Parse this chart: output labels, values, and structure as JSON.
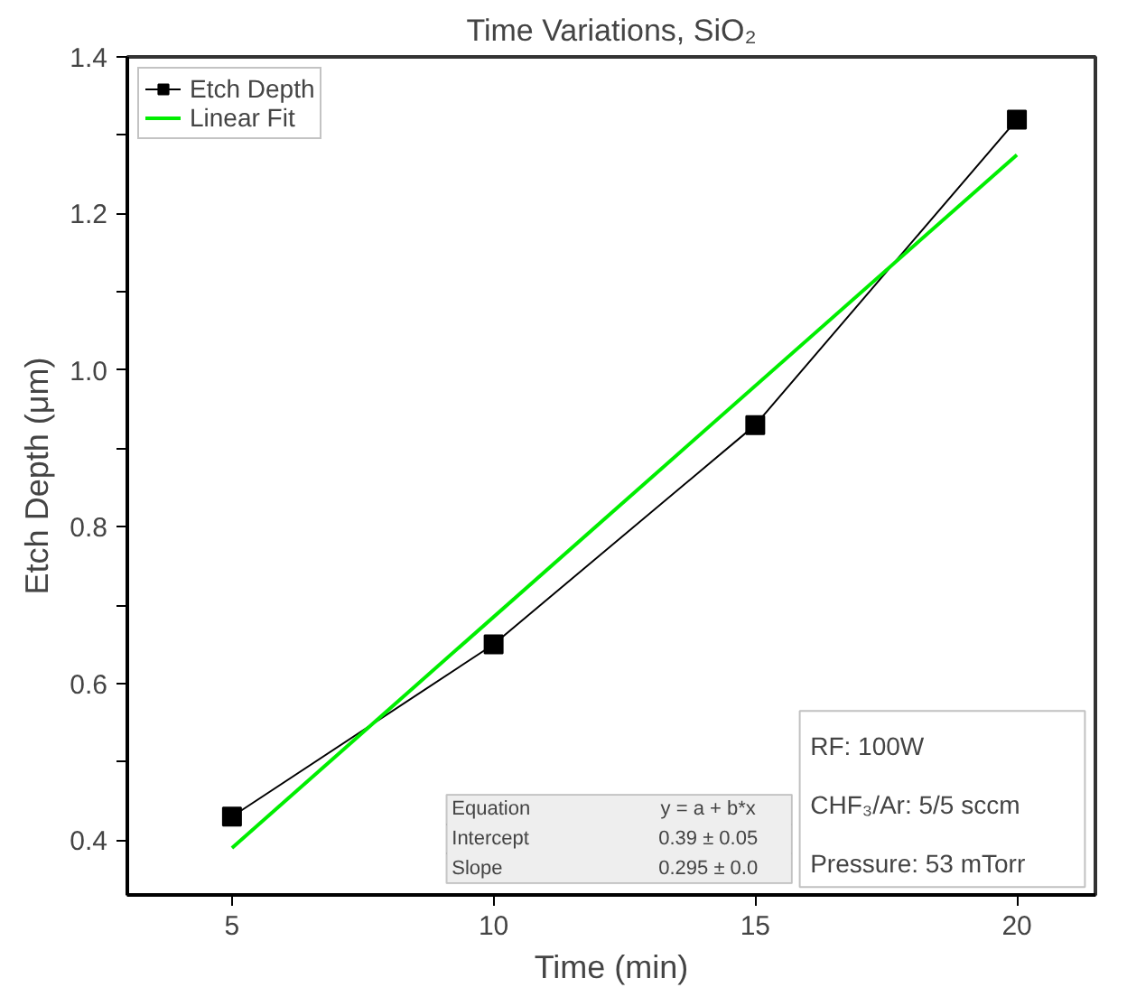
{
  "chart_data": {
    "type": "line",
    "title": "Time Variations, SiO₂",
    "xlabel": "Time (min)",
    "ylabel": "Etch Depth (μm)",
    "x": [
      5,
      10,
      15,
      20
    ],
    "series": [
      {
        "name": "Etch Depth",
        "color": "#000000",
        "values": [
          0.43,
          0.65,
          0.93,
          1.32
        ],
        "marker": "square"
      },
      {
        "name": "Linear Fit",
        "color": "#00ee00",
        "type": "line",
        "x": [
          5,
          20
        ],
        "values": [
          0.39,
          1.275
        ],
        "marker": "none"
      }
    ],
    "xlim": [
      3,
      21.5
    ],
    "xticks": [
      5,
      10,
      15,
      20
    ],
    "ylim": [
      0.33,
      1.4
    ],
    "yticks": [
      0.4,
      {
        "value": 0.5,
        "label": null
      },
      0.6,
      {
        "value": 0.7,
        "label": null
      },
      0.8,
      {
        "value": 0.9,
        "label": null
      },
      {
        "value": 1.0,
        "label": "1.0"
      },
      {
        "value": 1.1,
        "label": null
      },
      1.2,
      {
        "value": 1.3,
        "label": null
      },
      1.4
    ],
    "legend": "top left",
    "grid": false,
    "annotations": [
      "Equation",
      "y = a + b*x",
      "Intercept",
      "0.39 ± 0.05",
      "Slope",
      "0.295 ± 0.0",
      "RF: 100W",
      "CHF₃/Ar: 5/5 sccm",
      "Pressure: 53 mTorr"
    ]
  }
}
